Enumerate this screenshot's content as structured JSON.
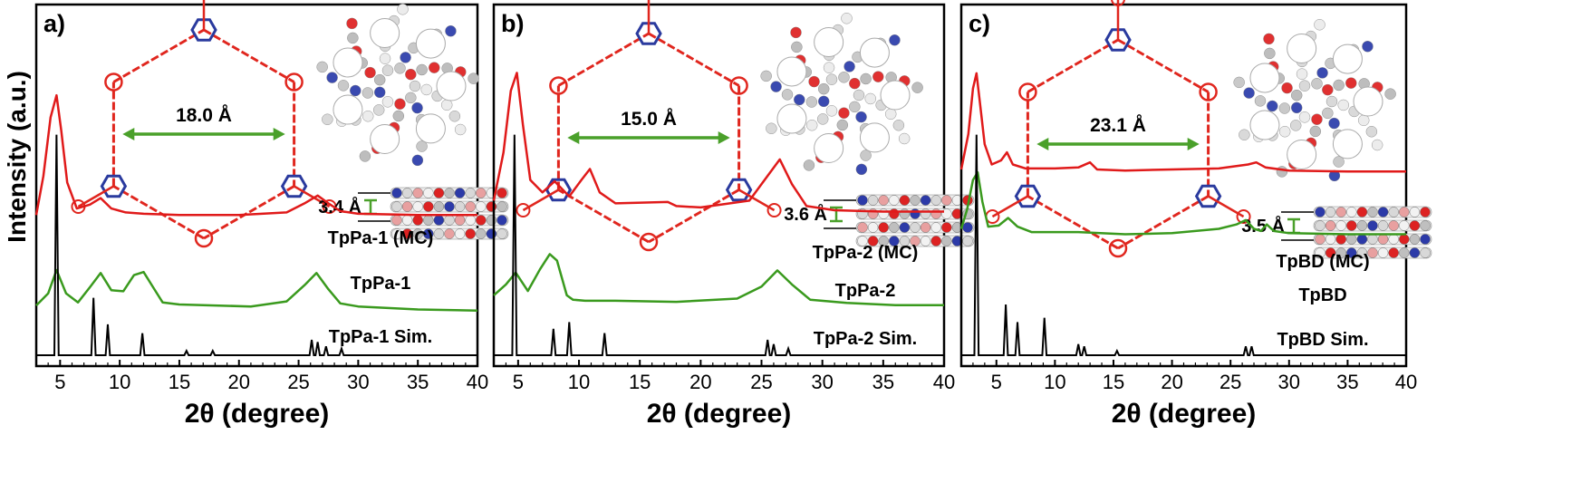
{
  "figure": {
    "y_axis_label": "Intensity (a.u.)"
  },
  "colors": {
    "sim": "#000000",
    "as_synth": "#e01a1a",
    "mc": "#3a9a1e",
    "link_red": "#e0261e",
    "node_blue": "#2a3a9e",
    "arrow_green": "#4aa02a"
  },
  "chart_data": [
    {
      "type": "line",
      "panel_label": "a)",
      "xlabel": "2θ (degree)",
      "ylabel": "Intensity (a.u.)",
      "xlim": [
        3,
        40
      ],
      "xticks": [
        5,
        10,
        15,
        20,
        25,
        30,
        35,
        40
      ],
      "pore_label": "18.0 Å",
      "stack_label": "3.4 Å",
      "series": [
        {
          "name": "TpPa-1 (MC)",
          "color": "#3a9a1e",
          "x": [
            3,
            4,
            4.7,
            5.5,
            6.5,
            7.5,
            8.4,
            9.3,
            10.3,
            11.2,
            12,
            12.8,
            13.6,
            15,
            18,
            21,
            24,
            25.5,
            26.5,
            27.5,
            28.5,
            30,
            35,
            40
          ],
          "y": [
            0.1,
            0.22,
            0.45,
            0.22,
            0.13,
            0.28,
            0.42,
            0.25,
            0.24,
            0.4,
            0.43,
            0.28,
            0.13,
            0.11,
            0.1,
            0.09,
            0.14,
            0.3,
            0.42,
            0.26,
            0.12,
            0.09,
            0.06,
            0.05
          ]
        },
        {
          "name": "TpPa-1",
          "color": "#e01a1a",
          "x": [
            3,
            3.6,
            4.2,
            4.7,
            5.1,
            5.6,
            6.4,
            7.5,
            8.4,
            9.3,
            10.5,
            12,
            15,
            20,
            24,
            25.5,
            26.6,
            27.5,
            28.5,
            30,
            35,
            40
          ],
          "y": [
            0.05,
            0.35,
            0.8,
            0.97,
            0.7,
            0.3,
            0.1,
            0.13,
            0.18,
            0.1,
            0.07,
            0.06,
            0.05,
            0.05,
            0.07,
            0.14,
            0.2,
            0.14,
            0.08,
            0.06,
            0.05,
            0.05
          ]
        },
        {
          "name": "TpPa-1 Sim.",
          "color": "#000000",
          "peaks": [
            [
              4.7,
              1.0
            ],
            [
              7.8,
              0.26
            ],
            [
              9.0,
              0.14
            ],
            [
              11.9,
              0.1
            ],
            [
              15.6,
              0.02
            ],
            [
              17.8,
              0.02
            ],
            [
              26.1,
              0.07
            ],
            [
              26.6,
              0.06
            ],
            [
              27.3,
              0.04
            ],
            [
              28.6,
              0.03
            ]
          ]
        }
      ]
    },
    {
      "type": "line",
      "panel_label": "b)",
      "xlabel": "2θ (degree)",
      "ylabel": "Intensity (a.u.)",
      "xlim": [
        3,
        40
      ],
      "xticks": [
        5,
        10,
        15,
        20,
        25,
        30,
        35,
        40
      ],
      "pore_label": "15.0 Å",
      "stack_label": "3.6 Å",
      "series": [
        {
          "name": "TpPa-2 (MC)",
          "color": "#3a9a1e",
          "x": [
            3,
            4,
            4.8,
            5.8,
            6.8,
            7.6,
            8.2,
            9.0,
            9.5,
            10.5,
            13,
            18,
            23,
            25,
            26.3,
            27.5,
            29,
            32,
            36,
            40
          ],
          "y": [
            0.12,
            0.22,
            0.33,
            0.16,
            0.36,
            0.5,
            0.44,
            0.12,
            0.08,
            0.07,
            0.07,
            0.06,
            0.09,
            0.2,
            0.35,
            0.22,
            0.08,
            0.05,
            0.03,
            0.03
          ]
        },
        {
          "name": "TpPa-2",
          "color": "#e01a1a",
          "x": [
            3,
            3.8,
            4.4,
            4.9,
            5.4,
            6.0,
            7.0,
            8.0,
            9.2,
            10.2,
            10.9,
            11.7,
            13,
            17.3,
            18,
            20,
            24,
            25.5,
            26.5,
            27.5,
            28.7,
            31,
            35,
            40
          ],
          "y": [
            0.1,
            0.45,
            0.9,
            1.03,
            0.65,
            0.25,
            0.16,
            0.24,
            0.13,
            0.25,
            0.33,
            0.16,
            0.08,
            0.09,
            0.06,
            0.05,
            0.1,
            0.28,
            0.4,
            0.22,
            0.06,
            0.03,
            0.02,
            0.02
          ]
        },
        {
          "name": "TpPa-2 Sim.",
          "color": "#000000",
          "peaks": [
            [
              4.7,
              1.0
            ],
            [
              7.9,
              0.12
            ],
            [
              9.2,
              0.15
            ],
            [
              12.1,
              0.1
            ],
            [
              25.5,
              0.07
            ],
            [
              26.0,
              0.05
            ],
            [
              27.2,
              0.03
            ]
          ]
        }
      ]
    },
    {
      "type": "line",
      "panel_label": "c)",
      "xlabel": "2θ (degree)",
      "ylabel": "Intensity (a.u.)",
      "xlim": [
        2,
        40
      ],
      "xticks": [
        5,
        10,
        15,
        20,
        25,
        30,
        35,
        40
      ],
      "pore_label": "23.1 Å",
      "stack_label": "3.5 Å",
      "series": [
        {
          "name": "TpBD (MC)",
          "color": "#3a9a1e",
          "x": [
            2,
            2.5,
            3.0,
            3.4,
            3.8,
            4.3,
            5.2,
            6.0,
            6.8,
            8,
            10,
            12,
            16,
            20,
            24,
            25.5,
            26.3,
            27,
            27.6,
            28.1,
            28.7,
            30,
            35,
            40
          ],
          "y": [
            0.1,
            0.28,
            0.55,
            0.62,
            0.35,
            0.12,
            0.13,
            0.2,
            0.12,
            0.07,
            0.07,
            0.07,
            0.05,
            0.06,
            0.1,
            0.14,
            0.18,
            0.1,
            0.08,
            0.14,
            0.08,
            0.06,
            0.05,
            0.05
          ]
        },
        {
          "name": "TpBD",
          "color": "#e01a1a",
          "x": [
            2,
            2.6,
            3.0,
            3.3,
            3.6,
            4.0,
            4.6,
            5.4,
            5.9,
            6.4,
            7.5,
            10,
            12,
            13,
            13.6,
            16,
            20,
            24,
            26.5,
            27.2,
            28,
            30,
            35,
            40
          ],
          "y": [
            0.05,
            0.4,
            0.85,
            1.0,
            0.7,
            0.3,
            0.1,
            0.14,
            0.22,
            0.1,
            0.06,
            0.06,
            0.07,
            0.12,
            0.05,
            0.04,
            0.05,
            0.06,
            0.1,
            0.12,
            0.07,
            0.04,
            0.03,
            0.03
          ]
        },
        {
          "name": "TpBD Sim.",
          "color": "#000000",
          "peaks": [
            [
              3.3,
              1.0
            ],
            [
              5.8,
              0.23
            ],
            [
              6.8,
              0.15
            ],
            [
              9.1,
              0.17
            ],
            [
              12.0,
              0.05
            ],
            [
              12.5,
              0.04
            ],
            [
              15.3,
              0.02
            ],
            [
              26.3,
              0.04
            ],
            [
              26.8,
              0.04
            ]
          ]
        }
      ]
    }
  ]
}
